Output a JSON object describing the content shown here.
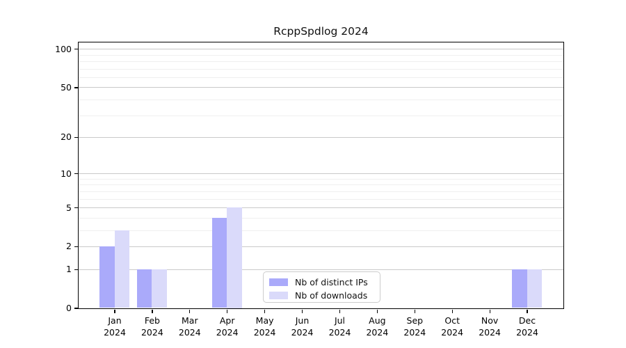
{
  "chart_data": {
    "type": "bar",
    "title": "RcppSpdlog 2024",
    "year": "2024",
    "categories": [
      "Jan",
      "Feb",
      "Mar",
      "Apr",
      "May",
      "Jun",
      "Jul",
      "Aug",
      "Sep",
      "Oct",
      "Nov",
      "Dec"
    ],
    "series": [
      {
        "name": "Nb of distinct IPs",
        "slug": "distinct-ips",
        "color": "#aaaafa",
        "values": [
          2,
          1,
          0,
          4,
          0,
          0,
          0,
          0,
          0,
          0,
          0,
          1
        ]
      },
      {
        "name": "Nb of downloads",
        "slug": "downloads",
        "color": "#dadafa",
        "values": [
          3,
          1,
          0,
          5,
          0,
          0,
          0,
          0,
          0,
          0,
          0,
          1
        ]
      }
    ],
    "xlabel": "",
    "ylabel": "",
    "y_axis": {
      "scale": "log1p",
      "ticks": [
        0,
        1,
        2,
        5,
        10,
        20,
        50,
        100
      ],
      "minor_ticks": [
        3,
        4,
        6,
        7,
        8,
        9,
        30,
        40,
        60,
        70,
        80,
        90
      ],
      "max": 113
    },
    "grid": true,
    "legend_position": "lower center",
    "colors": {
      "major_grid": "#c9c9c9",
      "minor_grid": "#efefef",
      "spine": "#000000",
      "text": "#000000",
      "background": "#ffffff"
    }
  }
}
